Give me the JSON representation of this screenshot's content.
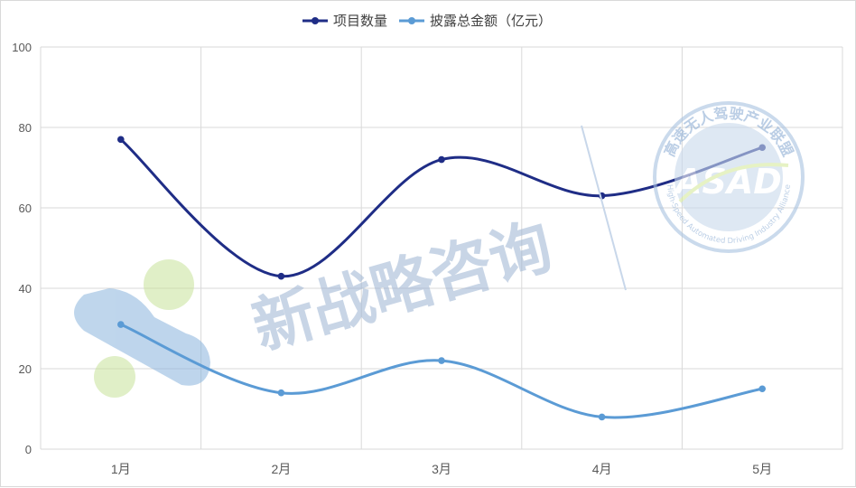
{
  "chart_data": {
    "type": "line",
    "categories": [
      "1月",
      "2月",
      "3月",
      "4月",
      "5月"
    ],
    "series": [
      {
        "name": "项目数量",
        "values": [
          77,
          43,
          72,
          63,
          75
        ],
        "color": "#1f2d86"
      },
      {
        "name": "披露总金额（亿元）",
        "values": [
          31,
          14,
          22,
          8,
          15
        ],
        "color": "#5b9bd5"
      }
    ],
    "yticks": [
      0,
      20,
      40,
      60,
      80,
      100
    ],
    "ylim": [
      0,
      100
    ],
    "grid": true,
    "smooth": true,
    "legend_position": "top-center"
  },
  "watermarks": {
    "text": "新战略咨询",
    "seal_text_cn": "高速无人驾驶产业联盟",
    "seal_logo": "ASAD",
    "seal_text_en": "High-Speed Automated Driving Industry Alliance"
  }
}
